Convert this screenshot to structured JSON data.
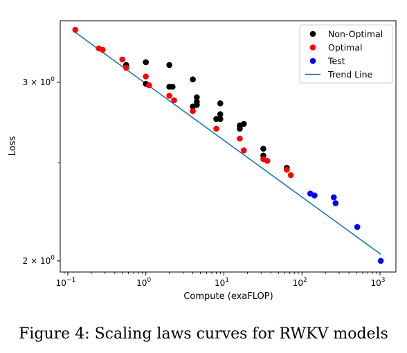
{
  "caption": "Figure 4: Scaling laws curves for RWKV models",
  "chart_data": {
    "type": "scatter",
    "xlabel": "Compute (exaFLOP)",
    "ylabel": "Loss",
    "xscale": "log",
    "yscale": "log",
    "xlim": [
      0.08,
      1600
    ],
    "ylim": [
      1.95,
      3.45
    ],
    "xticks": [
      {
        "value": 0.1,
        "base": "10",
        "exp": "−1"
      },
      {
        "value": 1,
        "base": "10",
        "exp": "0"
      },
      {
        "value": 10,
        "base": "10",
        "exp": "1"
      },
      {
        "value": 100,
        "base": "10",
        "exp": "2"
      },
      {
        "value": 1000,
        "base": "10",
        "exp": "3"
      }
    ],
    "yticks": [
      {
        "value": 3,
        "mant": "3 × 10",
        "exp": "0"
      },
      {
        "value": 2,
        "mant": "2 × 10",
        "exp": "0"
      }
    ],
    "legend_position": "top-right",
    "colors": {
      "non_optimal": "#000000",
      "optimal": "#ff0000",
      "test": "#0000ff",
      "trend": "#1f77b4"
    },
    "series": [
      {
        "name": "Non-Optimal",
        "kind": "points",
        "color": "#000000",
        "points": [
          [
            0.56,
            3.12
          ],
          [
            1.0,
            3.14
          ],
          [
            2.0,
            3.12
          ],
          [
            4.0,
            3.02
          ],
          [
            1.0,
            2.99
          ],
          [
            2.0,
            2.97
          ],
          [
            2.2,
            2.97
          ],
          [
            4.5,
            2.9
          ],
          [
            4.5,
            2.87
          ],
          [
            4.5,
            2.85
          ],
          [
            4.0,
            2.84
          ],
          [
            9.0,
            2.86
          ],
          [
            9.0,
            2.79
          ],
          [
            9.0,
            2.76
          ],
          [
            8.0,
            2.76
          ],
          [
            16.0,
            2.72
          ],
          [
            16.0,
            2.7
          ],
          [
            18.0,
            2.73
          ],
          [
            32.0,
            2.58
          ],
          [
            32.0,
            2.54
          ],
          [
            64.0,
            2.47
          ]
        ]
      },
      {
        "name": "Optimal",
        "kind": "points",
        "color": "#ff0000",
        "points": [
          [
            0.125,
            3.38
          ],
          [
            0.25,
            3.24
          ],
          [
            0.28,
            3.23
          ],
          [
            0.5,
            3.16
          ],
          [
            0.56,
            3.1
          ],
          [
            1.0,
            3.04
          ],
          [
            1.1,
            2.98
          ],
          [
            2.0,
            2.91
          ],
          [
            2.3,
            2.88
          ],
          [
            4.0,
            2.81
          ],
          [
            8.0,
            2.7
          ],
          [
            16.0,
            2.64
          ],
          [
            18.0,
            2.57
          ],
          [
            32.0,
            2.52
          ],
          [
            36.0,
            2.51
          ],
          [
            64.0,
            2.46
          ],
          [
            72.0,
            2.43
          ]
        ]
      },
      {
        "name": "Test",
        "kind": "points",
        "color": "#0000ff",
        "points": [
          [
            128,
            2.33
          ],
          [
            145,
            2.32
          ],
          [
            256,
            2.31
          ],
          [
            270,
            2.28
          ],
          [
            512,
            2.16
          ],
          [
            1024,
            2.0
          ]
        ]
      },
      {
        "name": "Trend Line",
        "kind": "line",
        "color": "#1f77b4",
        "points": [
          [
            0.125,
            3.36
          ],
          [
            1024,
            2.03
          ]
        ]
      }
    ]
  }
}
